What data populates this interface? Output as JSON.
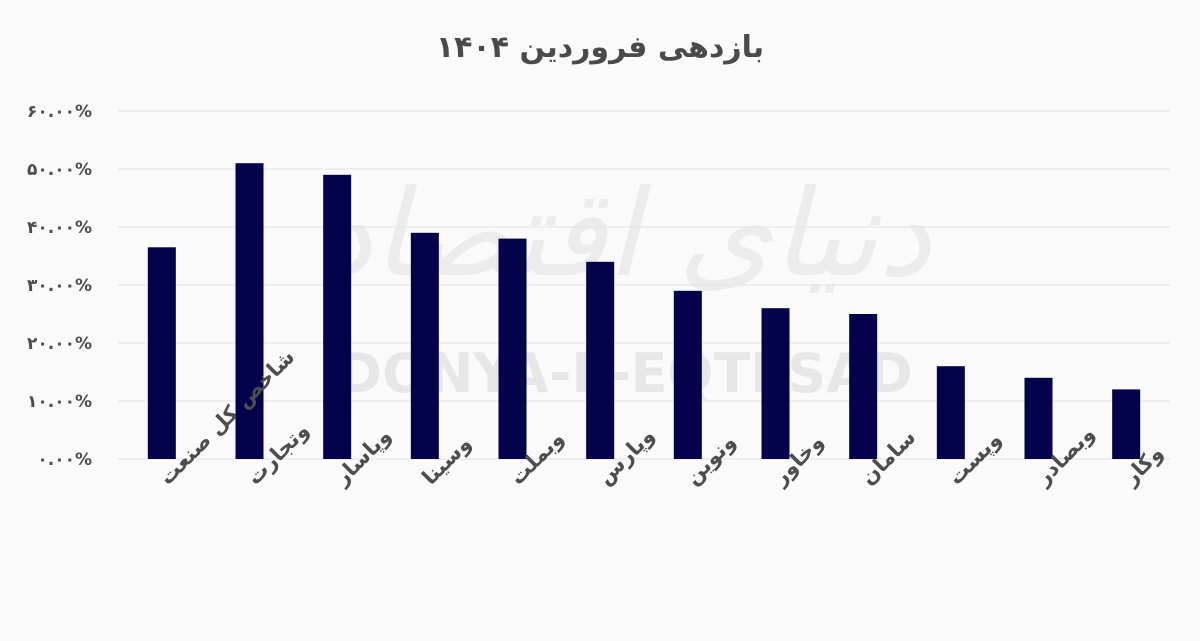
{
  "chart_data": {
    "type": "bar",
    "title": "بازدهی فروردین ۱۴۰۴",
    "categories": [
      "شاخص کل صنعت",
      "وتجارت",
      "وپاسار",
      "وسینا",
      "وبملت",
      "وپارس",
      "ونوین",
      "وخاور",
      "سامان",
      "وپست",
      "وبصادر",
      "وکار"
    ],
    "values": [
      36.5,
      51,
      49,
      39,
      38,
      34,
      29,
      26,
      25,
      16,
      14,
      12
    ],
    "ylim": [
      0,
      60
    ],
    "ytick_values": [
      0,
      10,
      20,
      30,
      40,
      50,
      60
    ],
    "ytick_labels": [
      "۰.۰۰%",
      "۱۰.۰۰%",
      "۲۰.۰۰%",
      "۳۰.۰۰%",
      "۴۰.۰۰%",
      "۵۰.۰۰%",
      "۶۰.۰۰%"
    ],
    "xlabel": "",
    "ylabel": "",
    "grid": true,
    "legend": "none",
    "bar_color": "#03024a",
    "watermark": {
      "latin": "DONYA-E-EQTESAD",
      "arabic": "دنیای اقتصاد"
    }
  }
}
